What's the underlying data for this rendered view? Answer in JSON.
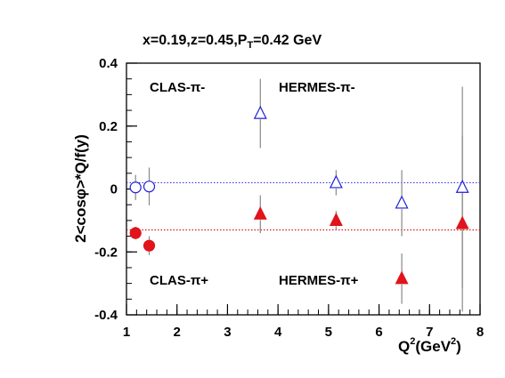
{
  "chart_data": {
    "type": "scatter",
    "title": "x=0.19,z=0.45,P_T=0.42 GeV",
    "title_parts": {
      "base": "x=0.19,z=0.45,P",
      "sub": "T",
      "tail": "=0.42 GeV"
    },
    "xlabel": "Q^2(GeV^2)",
    "xlabel_parts": {
      "q": "Q",
      "sup1": "2",
      "mid": "(GeV",
      "sup2": "2",
      "end": ")"
    },
    "ylabel": "2<cosφ>*Q/f(y)",
    "xlim": [
      1,
      8
    ],
    "ylim": [
      -0.4,
      0.4
    ],
    "x_ticks": [
      1,
      2,
      3,
      4,
      5,
      6,
      7,
      8
    ],
    "y_ticks": [
      -0.4,
      -0.2,
      0,
      0.2,
      0.4
    ],
    "y_tick_labels": [
      "-0.4",
      "-0.2",
      "0",
      "0.2",
      "0.4"
    ],
    "x_tick_labels": [
      "1",
      "2",
      "3",
      "4",
      "5",
      "6",
      "7",
      "8"
    ],
    "grid": false,
    "labels": {
      "clas_minus": "CLAS-π-",
      "hermes_minus": "HERMES-π-",
      "clas_plus": "CLAS-π+",
      "hermes_plus": "HERMES-π+"
    },
    "reference_lines": [
      {
        "y": 0.02,
        "color": "#3b3bdd",
        "style": "dotted"
      },
      {
        "y": -0.13,
        "color": "#e0141a",
        "style": "dotted"
      }
    ],
    "series": [
      {
        "name": "CLAS-π-",
        "marker": "open-circle",
        "color": "#1f1fd6",
        "points": [
          {
            "x": 1.18,
            "y": 0.005,
            "err": 0.04
          },
          {
            "x": 1.45,
            "y": 0.008,
            "err": 0.06
          }
        ]
      },
      {
        "name": "CLAS-π+",
        "marker": "filled-circle",
        "color": "#e0141a",
        "points": [
          {
            "x": 1.18,
            "y": -0.14,
            "err": 0.02
          },
          {
            "x": 1.45,
            "y": -0.18,
            "err": 0.03
          }
        ]
      },
      {
        "name": "HERMES-π-",
        "marker": "open-triangle",
        "color": "#1f1fd6",
        "points": [
          {
            "x": 3.65,
            "y": 0.24,
            "err": 0.11
          },
          {
            "x": 5.15,
            "y": 0.02,
            "err": 0.04
          },
          {
            "x": 6.45,
            "y": -0.045,
            "err": 0.105
          },
          {
            "x": 7.65,
            "y": 0.005,
            "err": 0.32
          }
        ]
      },
      {
        "name": "HERMES-π+",
        "marker": "filled-triangle",
        "color": "#e0141a",
        "points": [
          {
            "x": 3.65,
            "y": -0.08,
            "err": 0.06
          },
          {
            "x": 5.15,
            "y": -0.1,
            "err": 0.03
          },
          {
            "x": 6.45,
            "y": -0.285,
            "err": 0.08
          },
          {
            "x": 7.65,
            "y": -0.11,
            "err": 0.28
          }
        ]
      }
    ]
  }
}
